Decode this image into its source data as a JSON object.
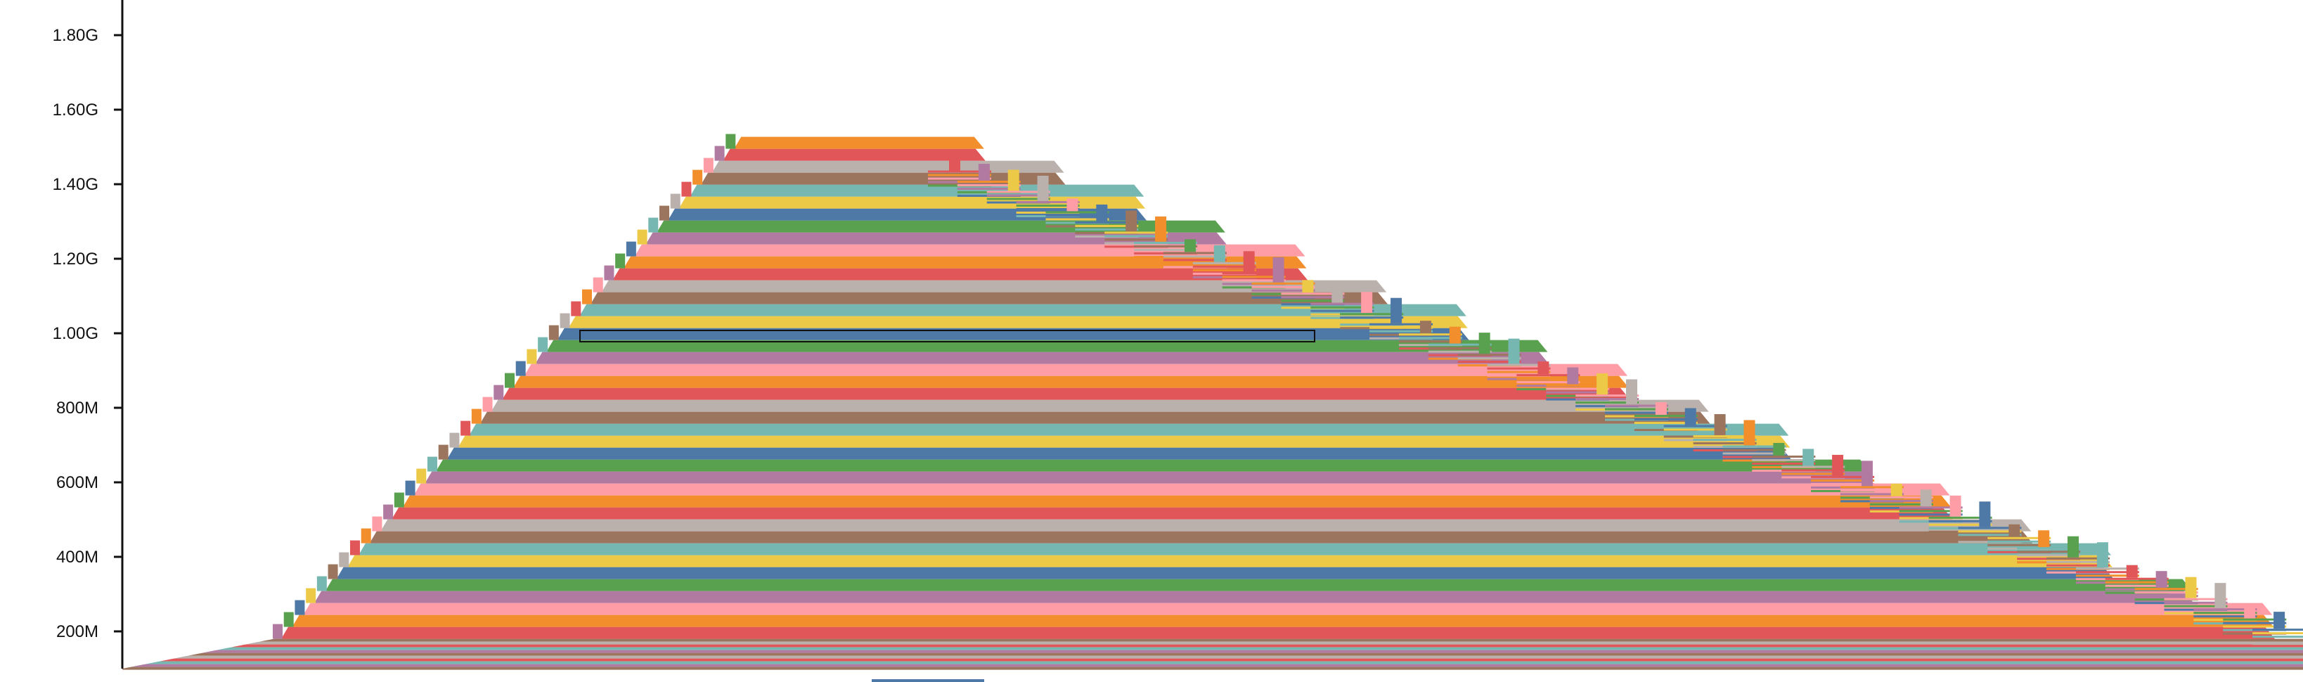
{
  "chart_data": {
    "type": "area",
    "title": "",
    "xlabel": "",
    "ylabel": "",
    "ylim": [
      100000000,
      1850000000
    ],
    "y_ticks": [
      {
        "value": 200000000,
        "label": "200M"
      },
      {
        "value": 400000000,
        "label": "400M"
      },
      {
        "value": 600000000,
        "label": "600M"
      },
      {
        "value": 800000000,
        "label": "800M"
      },
      {
        "value": 1000000000,
        "label": "1.00G"
      },
      {
        "value": 1200000000,
        "label": "1.20G"
      },
      {
        "value": 1400000000,
        "label": "1.40G"
      },
      {
        "value": 1600000000,
        "label": "1.60G"
      },
      {
        "value": 1800000000,
        "label": "1.80G"
      }
    ],
    "grid": false,
    "legend": "none",
    "peak_value": 1550000000,
    "baseline_value": 180000000,
    "palette": [
      "#e15759",
      "#f28e2b",
      "#ff9da7",
      "#b07aa1",
      "#59a14f",
      "#4e79a7",
      "#edc948",
      "#76b7b2",
      "#9c755f",
      "#bab0ac"
    ],
    "highlighted_band_value": 1000000000
  }
}
